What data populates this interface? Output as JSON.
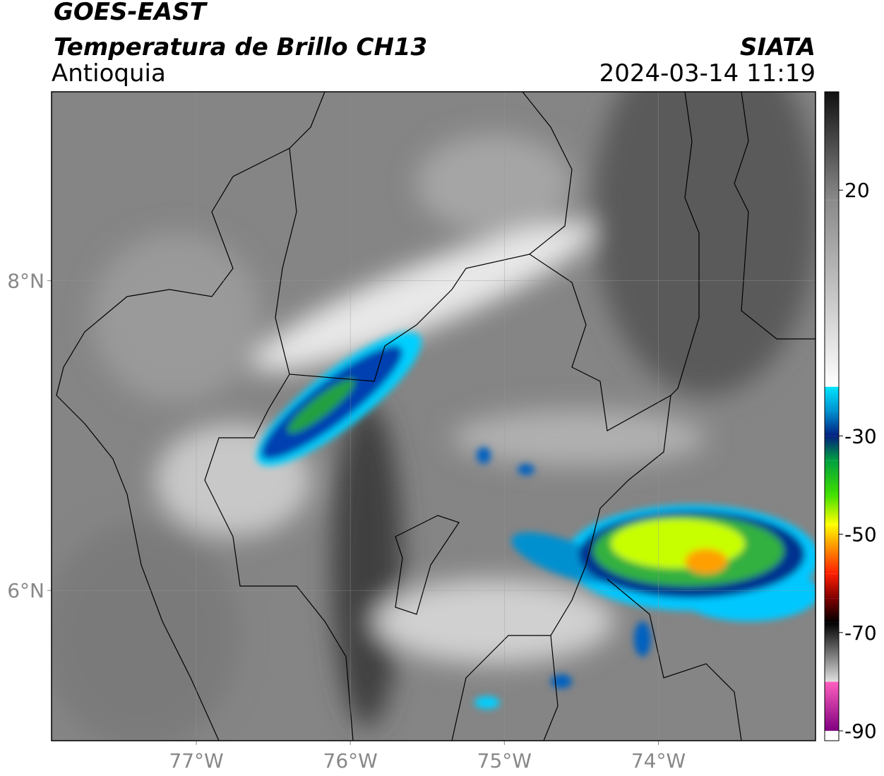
{
  "header": {
    "title": "GOES-EAST",
    "subtitle": "Temperatura de Brillo CH13",
    "region": "Antioquia",
    "source": "SIATA",
    "datetime": "2024-03-14 11:19"
  },
  "map": {
    "xlim": [
      -77.94,
      -72.98
    ],
    "ylim": [
      5.03,
      9.22
    ],
    "xticks": [
      {
        "value": -77,
        "label": "77°W"
      },
      {
        "value": -76,
        "label": "76°W"
      },
      {
        "value": -75,
        "label": "75°W"
      },
      {
        "value": -74,
        "label": "74°W"
      }
    ],
    "yticks": [
      {
        "value": 8,
        "label": "8°N"
      },
      {
        "value": 6,
        "label": "6°N"
      }
    ],
    "grid": true
  },
  "colorbar": {
    "lim": [
      -92,
      40
    ],
    "ticks": [
      20,
      -30,
      -50,
      -70,
      -90
    ],
    "stops": [
      {
        "value": 40,
        "color": "#111111"
      },
      {
        "value": 18,
        "color": "#8a8a8a"
      },
      {
        "value": -20,
        "color": "#ffffff"
      },
      {
        "value": -20.01,
        "color": "#00e5ff"
      },
      {
        "value": -25,
        "color": "#0090d0"
      },
      {
        "value": -30,
        "color": "#002080"
      },
      {
        "value": -35,
        "color": "#00a040"
      },
      {
        "value": -42,
        "color": "#40e000"
      },
      {
        "value": -48,
        "color": "#ffff00"
      },
      {
        "value": -52,
        "color": "#ffa000"
      },
      {
        "value": -58,
        "color": "#ff2000"
      },
      {
        "value": -63,
        "color": "#800000"
      },
      {
        "value": -68,
        "color": "#000000"
      },
      {
        "value": -80,
        "color": "#e0e0e0"
      },
      {
        "value": -80.01,
        "color": "#ff60c0"
      },
      {
        "value": -90,
        "color": "#800080"
      },
      {
        "value": -90.01,
        "color": "#ffffff"
      },
      {
        "value": -92,
        "color": "#ffffff"
      }
    ]
  }
}
